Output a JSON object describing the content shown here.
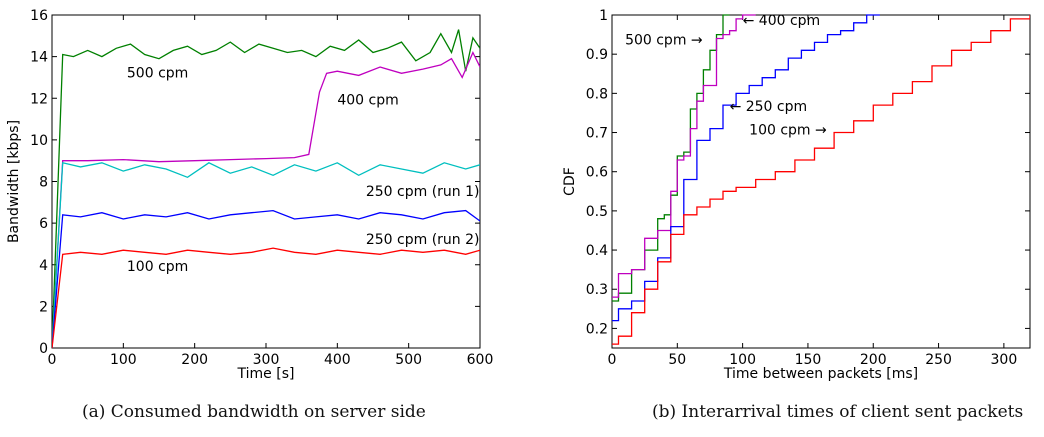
{
  "captions": {
    "a": "(a) Consumed bandwidth on server side",
    "b": "(b) Interarrival times of client sent packets"
  },
  "chart_data": [
    {
      "type": "line",
      "xlabel": "Time [s]",
      "ylabel": "Bandwidth [kbps]",
      "xlim": [
        0,
        600
      ],
      "ylim": [
        0,
        16
      ],
      "xticks": [
        0,
        100,
        200,
        300,
        400,
        500,
        600
      ],
      "yticks": [
        0,
        2,
        4,
        6,
        8,
        10,
        12,
        14,
        16
      ],
      "grid": false,
      "series": [
        {
          "name": "500 cpm",
          "color": "#008000",
          "x": [
            0,
            15,
            30,
            50,
            70,
            90,
            110,
            130,
            150,
            170,
            190,
            210,
            230,
            250,
            270,
            290,
            310,
            330,
            350,
            370,
            390,
            410,
            430,
            450,
            470,
            490,
            510,
            530,
            545,
            560,
            570,
            580,
            590,
            600
          ],
          "y": [
            0,
            14.1,
            14.0,
            14.3,
            14.0,
            14.4,
            14.6,
            14.1,
            13.9,
            14.3,
            14.5,
            14.1,
            14.3,
            14.7,
            14.2,
            14.6,
            14.4,
            14.2,
            14.3,
            14.0,
            14.5,
            14.3,
            14.8,
            14.2,
            14.4,
            14.7,
            13.8,
            14.2,
            15.1,
            14.2,
            15.3,
            13.3,
            14.9,
            14.4
          ]
        },
        {
          "name": "400 cpm",
          "color": "#bf00bf",
          "x": [
            0,
            15,
            50,
            100,
            150,
            200,
            250,
            300,
            340,
            360,
            375,
            385,
            400,
            430,
            460,
            490,
            520,
            545,
            560,
            575,
            590,
            600
          ],
          "y": [
            0,
            9.0,
            9.0,
            9.05,
            8.95,
            9.0,
            9.05,
            9.1,
            9.15,
            9.3,
            12.3,
            13.2,
            13.3,
            13.1,
            13.5,
            13.2,
            13.4,
            13.6,
            13.9,
            13.0,
            14.2,
            13.5
          ]
        },
        {
          "name": "250 cpm (run 1)",
          "color": "#00bfbf",
          "x": [
            0,
            15,
            40,
            70,
            100,
            130,
            160,
            190,
            220,
            250,
            280,
            310,
            340,
            370,
            400,
            430,
            460,
            490,
            520,
            550,
            580,
            600
          ],
          "y": [
            0,
            8.9,
            8.7,
            8.9,
            8.5,
            8.8,
            8.6,
            8.2,
            8.9,
            8.4,
            8.7,
            8.3,
            8.8,
            8.5,
            8.9,
            8.3,
            8.8,
            8.6,
            8.4,
            8.9,
            8.6,
            8.8
          ]
        },
        {
          "name": "250 cpm (run 2)",
          "color": "#0000ff",
          "x": [
            0,
            15,
            40,
            70,
            100,
            130,
            160,
            190,
            220,
            250,
            280,
            310,
            340,
            370,
            400,
            430,
            460,
            490,
            520,
            550,
            580,
            600
          ],
          "y": [
            0,
            6.4,
            6.3,
            6.5,
            6.2,
            6.4,
            6.3,
            6.5,
            6.2,
            6.4,
            6.5,
            6.6,
            6.2,
            6.3,
            6.4,
            6.2,
            6.5,
            6.4,
            6.2,
            6.5,
            6.6,
            6.1
          ]
        },
        {
          "name": "100 cpm",
          "color": "#ff0000",
          "x": [
            0,
            15,
            40,
            70,
            100,
            130,
            160,
            190,
            220,
            250,
            280,
            310,
            340,
            370,
            400,
            430,
            460,
            490,
            520,
            550,
            580,
            600
          ],
          "y": [
            0,
            4.5,
            4.6,
            4.5,
            4.7,
            4.6,
            4.5,
            4.7,
            4.6,
            4.5,
            4.6,
            4.8,
            4.6,
            4.5,
            4.7,
            4.6,
            4.5,
            4.7,
            4.6,
            4.7,
            4.5,
            4.7
          ]
        }
      ],
      "annotations": [
        {
          "text": "500 cpm",
          "x": 105,
          "y": 13.0
        },
        {
          "text": "400 cpm",
          "x": 400,
          "y": 11.7
        },
        {
          "text": "250 cpm (run 1)",
          "x": 440,
          "y": 7.3
        },
        {
          "text": "250 cpm (run 2)",
          "x": 440,
          "y": 5.0
        },
        {
          "text": "100 cpm",
          "x": 105,
          "y": 3.7
        }
      ]
    },
    {
      "type": "line",
      "xlabel": "Time between packets [ms]",
      "ylabel": "CDF",
      "xlim": [
        0,
        320
      ],
      "ylim": [
        0.15,
        1.0
      ],
      "xticks": [
        0,
        50,
        100,
        150,
        200,
        250,
        300
      ],
      "yticks": [
        0.2,
        0.3,
        0.4,
        0.5,
        0.6,
        0.7,
        0.8,
        0.9,
        1
      ],
      "grid": false,
      "series": [
        {
          "name": "500 cpm",
          "color": "#008000",
          "x": [
            0,
            5,
            15,
            25,
            35,
            40,
            45,
            50,
            55,
            60,
            65,
            70,
            75,
            80,
            85,
            90
          ],
          "y": [
            0.27,
            0.29,
            0.35,
            0.4,
            0.48,
            0.49,
            0.54,
            0.64,
            0.65,
            0.76,
            0.8,
            0.86,
            0.91,
            0.95,
            1.0,
            1.0
          ]
        },
        {
          "name": "400 cpm",
          "color": "#bf00bf",
          "x": [
            0,
            5,
            15,
            25,
            35,
            45,
            50,
            55,
            60,
            65,
            70,
            80,
            85,
            90,
            95,
            100,
            110
          ],
          "y": [
            0.28,
            0.34,
            0.35,
            0.43,
            0.45,
            0.55,
            0.63,
            0.64,
            0.71,
            0.78,
            0.82,
            0.94,
            0.95,
            0.96,
            0.99,
            1.0,
            1.0
          ]
        },
        {
          "name": "250 cpm",
          "color": "#0000ff",
          "x": [
            0,
            5,
            15,
            25,
            35,
            45,
            55,
            65,
            75,
            85,
            95,
            105,
            115,
            125,
            135,
            145,
            155,
            165,
            175,
            185,
            195,
            205
          ],
          "y": [
            0.22,
            0.25,
            0.27,
            0.32,
            0.38,
            0.46,
            0.58,
            0.68,
            0.71,
            0.77,
            0.8,
            0.82,
            0.84,
            0.86,
            0.89,
            0.91,
            0.93,
            0.95,
            0.96,
            0.98,
            1.0,
            1.0
          ]
        },
        {
          "name": "100 cpm",
          "color": "#ff0000",
          "x": [
            0,
            5,
            15,
            25,
            35,
            45,
            55,
            65,
            75,
            85,
            95,
            110,
            125,
            140,
            155,
            170,
            185,
            200,
            215,
            230,
            245,
            260,
            275,
            290,
            305,
            320
          ],
          "y": [
            0.16,
            0.18,
            0.24,
            0.3,
            0.37,
            0.44,
            0.49,
            0.51,
            0.53,
            0.55,
            0.56,
            0.58,
            0.6,
            0.63,
            0.66,
            0.7,
            0.73,
            0.77,
            0.8,
            0.83,
            0.87,
            0.91,
            0.93,
            0.96,
            0.99,
            1.0
          ]
        }
      ],
      "annotations": [
        {
          "text": "500 cpm",
          "x": 10,
          "y": 0.925,
          "arrow": "→"
        },
        {
          "text": "400 cpm",
          "x": 100,
          "y": 0.975,
          "arrow": "←"
        },
        {
          "text": "250 cpm",
          "x": 90,
          "y": 0.755,
          "arrow": "←"
        },
        {
          "text": "100 cpm",
          "x": 105,
          "y": 0.695,
          "arrow": "→"
        }
      ]
    }
  ]
}
